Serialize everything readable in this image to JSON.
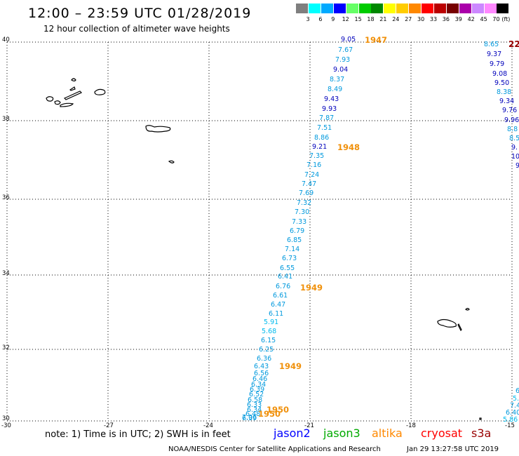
{
  "header": {
    "title": "12:00 – 23:59 UTC 01/28/2019",
    "subtitle": "12 hour collection of altimeter wave heights"
  },
  "color_scale": {
    "colors": [
      "#7f7f7f",
      "#00ffff",
      "#00aaff",
      "#0000ff",
      "#66ff66",
      "#00cc00",
      "#008800",
      "#ffff00",
      "#ffcc00",
      "#ff8800",
      "#ff0000",
      "#bb0000",
      "#770000",
      "#aa00aa",
      "#cc88ff",
      "#ff88ff",
      "#000000"
    ],
    "labels": [
      "3",
      "6",
      "9",
      "12",
      "15",
      "18",
      "21",
      "24",
      "27",
      "30",
      "33",
      "36",
      "39",
      "42",
      "45",
      "70",
      "(ft)"
    ]
  },
  "axes": {
    "x_ticks": [
      "-30",
      "-27",
      "-24",
      "-21",
      "-18",
      "-15"
    ],
    "y_ticks": [
      "40",
      "38",
      "36",
      "34",
      "32",
      "30"
    ],
    "lon_range": [
      -30,
      -15
    ],
    "lat_range": [
      30,
      40
    ]
  },
  "track_main": {
    "values": [
      "9.05",
      "7.67",
      "7.93",
      "9.04",
      "8.37",
      "8.49",
      "9.43",
      "9.93",
      "7.87",
      "7.51",
      "8.86",
      "9.21",
      "7.35",
      "7.16",
      "7.24",
      "7.47",
      "7.69",
      "7.32",
      "7.30",
      "7.33",
      "6.79",
      "6.85",
      "7.14",
      "6.73",
      "6.55",
      "6.41",
      "6.76",
      "6.61",
      "6.47",
      "6.11",
      "5.91",
      "5.68",
      "6.15",
      "6.25",
      "6.36",
      "6.43",
      "6.56",
      "6.46",
      "6.34",
      "6.39",
      "6.52",
      "6.58",
      "6.33",
      "6.34",
      "6.48",
      "6.39",
      "7.06"
    ]
  },
  "track_right": {
    "values": [
      "8.65",
      "9.37",
      "9.79",
      "9.08",
      "9.50",
      "8.38",
      "9.34",
      "9.76",
      "9.96",
      "8.8",
      "8.5",
      "9.",
      "10",
      "9"
    ],
    "marker": "22"
  },
  "track_lower_right": {
    "values": [
      "6",
      "5.",
      "7.4",
      "6.40",
      "5.86"
    ]
  },
  "times": [
    "1947",
    "1948",
    "1949",
    "1949",
    "1950",
    "1950"
  ],
  "footer": {
    "note": "note: 1) Time is in UTC; 2) SWH is in feet",
    "satellites": [
      {
        "name": "jason2",
        "color": "#0000ff"
      },
      {
        "name": "jason3",
        "color": "#00aa00"
      },
      {
        "name": "altika",
        "color": "#ff8800"
      },
      {
        "name": "cryosat",
        "color": "#ff0000"
      },
      {
        "name": "s3a",
        "color": "#990000"
      }
    ],
    "credit": "NOAA/NESDIS Center for Satellite Applications and Research",
    "timestamp": "Jan 29 13:27:58 UTC 2019"
  }
}
